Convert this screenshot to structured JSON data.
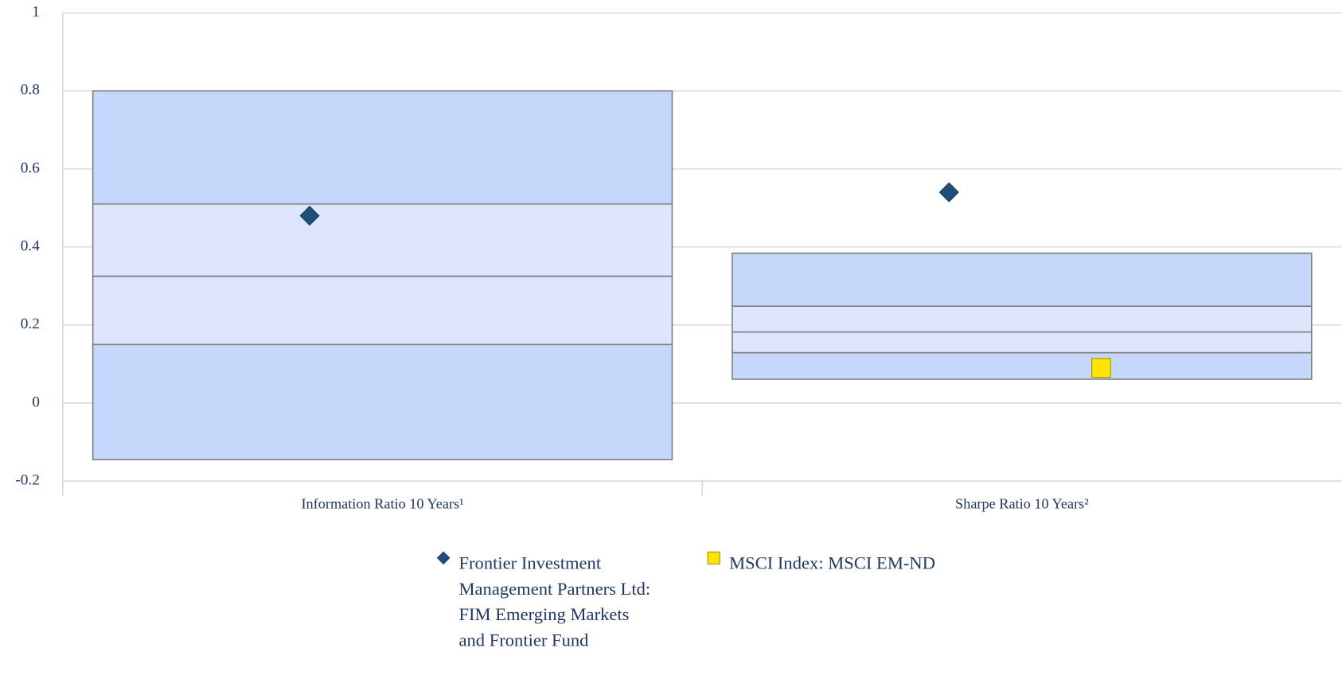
{
  "chart_data": {
    "type": "floating_box",
    "categories": [
      "Information Ratio 10 Years¹",
      "Sharpe Ratio 10 Years²"
    ],
    "boxes": [
      [
        -0.145,
        0.15,
        0.325,
        0.51,
        0.8
      ],
      [
        0.061,
        0.129,
        0.182,
        0.248,
        0.384
      ]
    ],
    "band_colors": [
      "#c5d7fb",
      "#dde6fd",
      "#dde6fd",
      "#c5d7fb"
    ],
    "series": [
      {
        "name": "Frontier Investment Management Partners Ltd: FIM Emerging Markets and Frontier Fund",
        "color": "#1f4e79",
        "marker": "diamond",
        "values": [
          0.48,
          0.54
        ]
      },
      {
        "name": "MSCI Index: MSCI EM-ND",
        "color": "#ffe600",
        "marker": "square",
        "values": [
          null,
          0.09
        ]
      }
    ],
    "ylim": [
      -0.2,
      1
    ],
    "yticks": [
      -0.2,
      0,
      0.2,
      0.4,
      0.6,
      0.8,
      1
    ],
    "grid": true
  }
}
